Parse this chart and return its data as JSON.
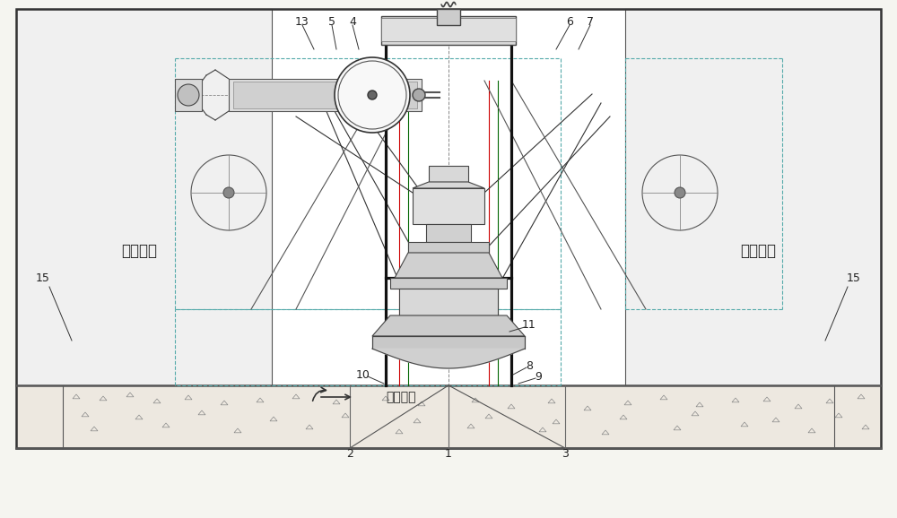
{
  "fig_width": 10.0,
  "fig_height": 5.78,
  "dpi": 100,
  "bg_color": "#ffffff",
  "line_color": "#333333",
  "label_13": "13",
  "label_5": "5",
  "label_4": "4",
  "label_6": "6",
  "label_7": "7",
  "label_15a": "15",
  "label_15b": "15",
  "label_11": "11",
  "label_10": "10",
  "label_8": "8",
  "label_9": "9",
  "label_2": "2",
  "label_1": "1",
  "label_3": "3",
  "text_downstream": "闸室下游",
  "text_upstream": "闸室上游",
  "text_flow": "水流方向",
  "font_label": 9,
  "font_text": 12
}
